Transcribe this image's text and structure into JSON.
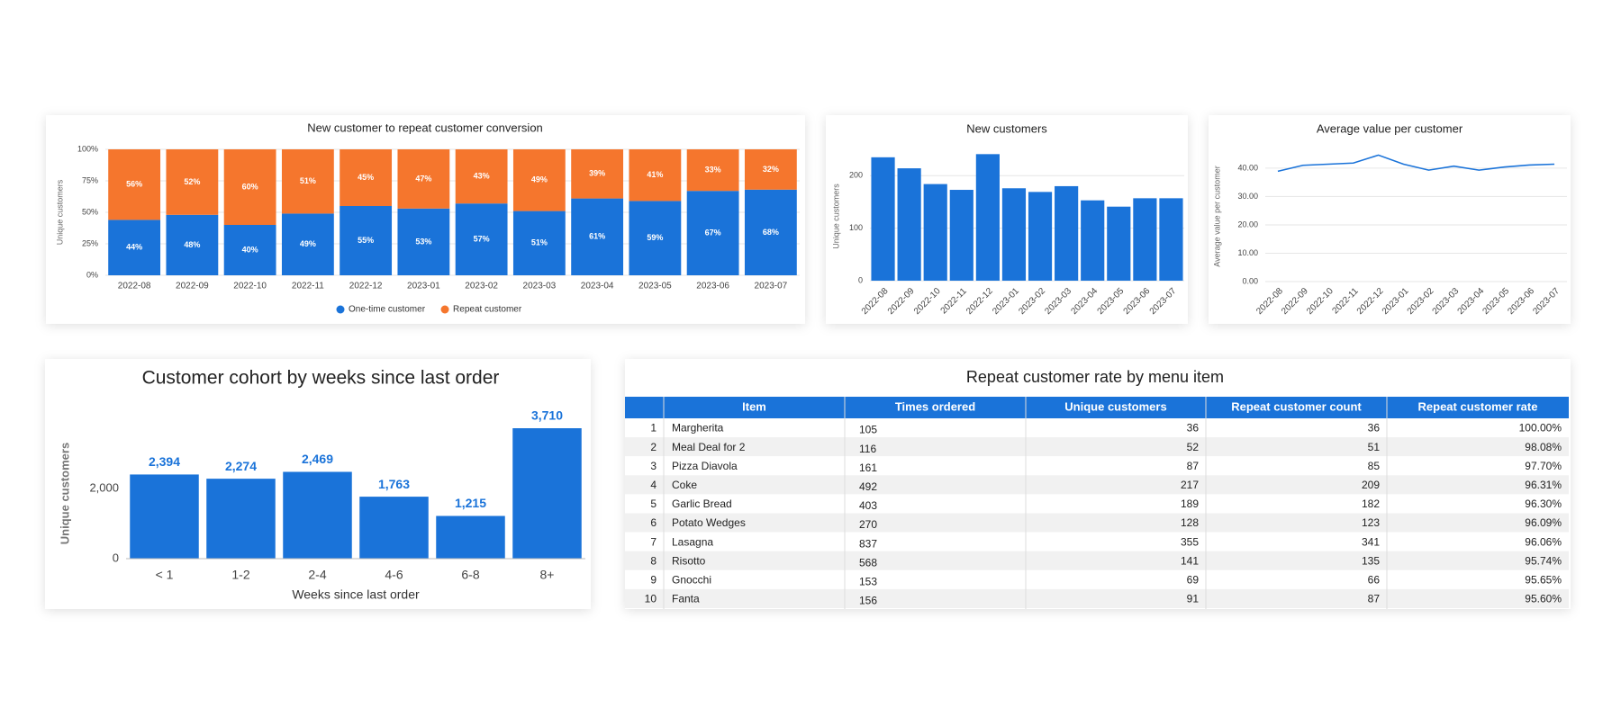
{
  "chart_data": [
    {
      "type": "bar",
      "stacked": true,
      "title": "New customer to repeat customer conversion",
      "ylabel": "Unique customers",
      "categories": [
        "2022-08",
        "2022-09",
        "2022-10",
        "2022-11",
        "2022-12",
        "2023-01",
        "2023-02",
        "2023-03",
        "2023-04",
        "2023-05",
        "2023-06",
        "2023-07"
      ],
      "series": [
        {
          "name": "One-time customer",
          "color": "#1a73d9",
          "values": [
            44,
            48,
            40,
            49,
            55,
            53,
            57,
            51,
            61,
            59,
            67,
            68
          ],
          "value_labels": [
            "44%",
            "48%",
            "40%",
            "49%",
            "55%",
            "53%",
            "57%",
            "51%",
            "61%",
            "59%",
            "67%",
            "68%"
          ]
        },
        {
          "name": "Repeat customer",
          "color": "#f5762d",
          "values": [
            56,
            52,
            60,
            51,
            45,
            47,
            43,
            49,
            39,
            41,
            33,
            32
          ],
          "value_labels": [
            "56%",
            "52%",
            "60%",
            "51%",
            "45%",
            "47%",
            "43%",
            "49%",
            "39%",
            "41%",
            "33%",
            "32%"
          ]
        }
      ],
      "ylim": [
        0,
        100
      ],
      "yticks": [
        {
          "value": 0,
          "label": "0%"
        },
        {
          "value": 25,
          "label": "25%"
        },
        {
          "value": 50,
          "label": "50%"
        },
        {
          "value": 75,
          "label": "75%"
        },
        {
          "value": 100,
          "label": "100%"
        }
      ],
      "grid": true,
      "legend": "bottom"
    },
    {
      "type": "bar",
      "title": "New customers",
      "ylabel": "Unique customers",
      "color": "#1a73d9",
      "categories": [
        "2022-08",
        "2022-09",
        "2022-10",
        "2022-11",
        "2022-12",
        "2023-01",
        "2023-02",
        "2023-03",
        "2023-04",
        "2023-05",
        "2023-06",
        "2023-07"
      ],
      "values": [
        235,
        214,
        184,
        173,
        241,
        176,
        169,
        180,
        153,
        141,
        157,
        157
      ],
      "ylim": [
        0,
        245
      ],
      "yticks": [
        0,
        100,
        200
      ],
      "grid": true
    },
    {
      "type": "line",
      "title": "Average value per customer",
      "ylabel": "Average value per customer",
      "color": "#1a73d9",
      "categories": [
        "2022-08",
        "2022-09",
        "2022-10",
        "2022-11",
        "2022-12",
        "2023-01",
        "2023-02",
        "2023-03",
        "2023-04",
        "2023-05",
        "2023-06",
        "2023-07"
      ],
      "values": [
        38.9,
        41,
        41.4,
        41.8,
        44.6,
        41.4,
        39.3,
        40.7,
        39.3,
        40.4,
        41.1,
        41.4
      ],
      "ylim": [
        0,
        46
      ],
      "yticks": [
        {
          "value": 0,
          "label": "0.00"
        },
        {
          "value": 10,
          "label": "10.00"
        },
        {
          "value": 20,
          "label": "20.00"
        },
        {
          "value": 30,
          "label": "30.00"
        },
        {
          "value": 40,
          "label": "40.00"
        }
      ],
      "grid": true
    },
    {
      "type": "bar",
      "title": "Customer cohort by weeks since last order",
      "xlabel": "Weeks since last order",
      "ylabel": "Unique customers",
      "color": "#1a73d9",
      "categories": [
        "< 1",
        "1-2",
        "2-4",
        "4-6",
        "6-8",
        "8+"
      ],
      "values": [
        2394,
        2274,
        2469,
        1763,
        1215,
        3710
      ],
      "value_labels": [
        "2,394",
        "2,274",
        "2,469",
        "1,763",
        "1,215",
        "3,710"
      ],
      "ylim": [
        0,
        3710
      ],
      "yticks": [
        0,
        {
          "value": 2000,
          "label": "2,000"
        }
      ],
      "grid": false
    }
  ],
  "table": {
    "title": "Repeat customer rate by menu item",
    "columns": [
      "Item",
      "Times ordered",
      "Unique customers",
      "Repeat customer count",
      "Repeat customer rate"
    ],
    "rows": [
      [
        1,
        "Margherita",
        105,
        36,
        36,
        "100.00%"
      ],
      [
        2,
        "Meal Deal for 2",
        116,
        52,
        51,
        "98.08%"
      ],
      [
        3,
        "Pizza Diavola",
        161,
        87,
        85,
        "97.70%"
      ],
      [
        4,
        "Coke",
        492,
        217,
        209,
        "96.31%"
      ],
      [
        5,
        "Garlic Bread",
        403,
        189,
        182,
        "96.30%"
      ],
      [
        6,
        "Potato Wedges",
        270,
        128,
        123,
        "96.09%"
      ],
      [
        7,
        "Lasagna",
        837,
        355,
        341,
        "96.06%"
      ],
      [
        8,
        "Risotto",
        568,
        141,
        135,
        "95.74%"
      ],
      [
        9,
        "Gnocchi",
        153,
        69,
        66,
        "95.65%"
      ],
      [
        10,
        "Fanta",
        156,
        91,
        87,
        "95.60%"
      ]
    ]
  }
}
